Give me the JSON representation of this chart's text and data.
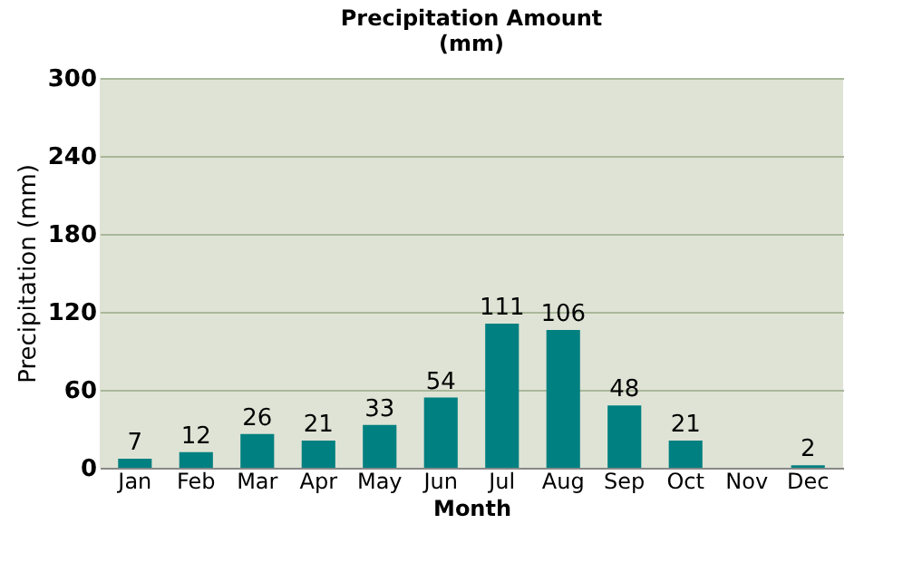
{
  "chart_data": {
    "type": "bar",
    "title": "Precipitation Amount\n(mm)",
    "xlabel": "Month",
    "ylabel": "Precipitation (mm)",
    "categories": [
      "Jan",
      "Feb",
      "Mar",
      "Apr",
      "May",
      "Jun",
      "Jul",
      "Aug",
      "Sep",
      "Oct",
      "Nov",
      "Dec"
    ],
    "values": [
      7,
      12,
      26,
      21,
      33,
      54,
      111,
      106,
      48,
      21,
      null,
      2
    ],
    "color": "#008080",
    "ylim": [
      0,
      300
    ],
    "yticks": [
      0,
      60,
      120,
      180,
      240,
      300
    ],
    "grid": "y",
    "data_labels": true
  }
}
